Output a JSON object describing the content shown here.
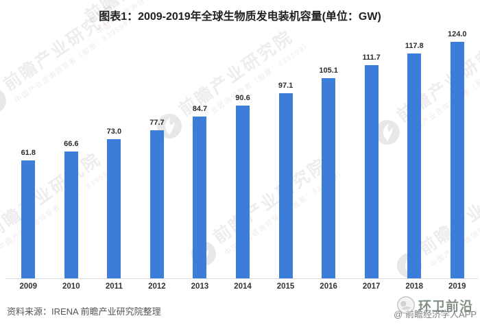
{
  "header": {
    "title": "图表1：2009-2019年全球生物质发电装机容量(单位：GW)"
  },
  "chart_data": {
    "type": "bar",
    "title": "图表1：2009-2019年全球生物质发电装机容量(单位：GW)",
    "unit": "GW",
    "categories": [
      "2009",
      "2010",
      "2011",
      "2012",
      "2013",
      "2014",
      "2015",
      "2016",
      "2017",
      "2018",
      "2019"
    ],
    "values": [
      61.8,
      66.6,
      73.0,
      77.7,
      84.7,
      90.6,
      97.1,
      105.1,
      111.7,
      117.8,
      124.0
    ],
    "value_labels": [
      "61.8",
      "66.6",
      "73.0",
      "77.7",
      "84.7",
      "90.6",
      "97.1",
      "105.1",
      "111.7",
      "117.8",
      "124.0"
    ],
    "xlabel": "",
    "ylabel": "",
    "ylim": [
      0,
      130
    ],
    "grid": false,
    "legend": "none",
    "bar_color": "#3c7dd9",
    "axis_line_color": "#d9d9d9"
  },
  "footer": {
    "source_note": "资料来源：IRENA 前瞻产业研究院整理",
    "channel_watermark": "环卫前沿",
    "credit": "@ 前瞻经济学人APP"
  },
  "watermark": {
    "brand_text": "前瞻产业研究院",
    "brand_subtext": "中国产业咨询领导者（股票：839599）",
    "logo_icon": "qianzhan-swoosh-logo"
  }
}
